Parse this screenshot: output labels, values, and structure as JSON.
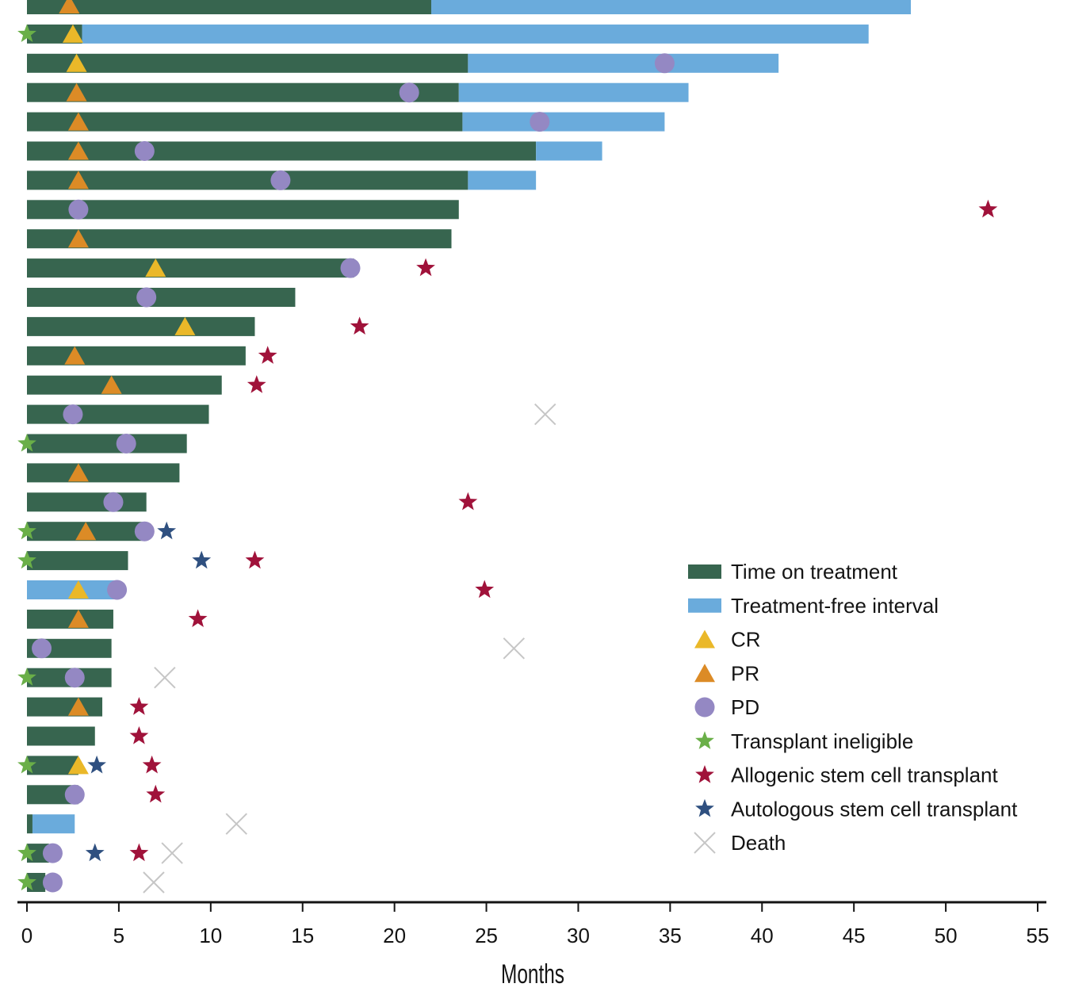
{
  "chart_data": {
    "type": "bar",
    "orientation": "horizontal",
    "xlabel": "Months",
    "xlim": [
      0,
      55
    ],
    "xticks": [
      0,
      5,
      10,
      15,
      20,
      25,
      30,
      35,
      40,
      45,
      50,
      55
    ],
    "grid": false,
    "legend_position": "bottom-right",
    "legend": [
      {
        "key": "treatment",
        "label": "Time on treatment",
        "marker": "bar",
        "color": "#37654f"
      },
      {
        "key": "tfi",
        "label": "Treatment-free interval",
        "marker": "bar",
        "color": "#6aabdc"
      },
      {
        "key": "cr",
        "label": "CR",
        "marker": "triangle",
        "color": "#eab829"
      },
      {
        "key": "pr",
        "label": "PR",
        "marker": "triangle",
        "color": "#dc8b26"
      },
      {
        "key": "pd",
        "label": "PD",
        "marker": "circle",
        "color": "#9488c3"
      },
      {
        "key": "ineligible",
        "label": "Transplant ineligible",
        "marker": "star",
        "color": "#6aaf48"
      },
      {
        "key": "allo",
        "label": "Allogenic stem cell transplant",
        "marker": "star",
        "color": "#a0123a"
      },
      {
        "key": "auto",
        "label": "Autologous stem cell transplant",
        "marker": "star",
        "color": "#2f5080"
      },
      {
        "key": "death",
        "label": "Death",
        "marker": "cross",
        "color": "#c6c6c6"
      }
    ],
    "patients": [
      {
        "treatment": 22.0,
        "tfi": 48.1,
        "pr": 2.3
      },
      {
        "treatment": 3.0,
        "tfi": 45.8,
        "cr": 2.5,
        "ineligible": 0
      },
      {
        "treatment": 24.0,
        "tfi": 40.9,
        "cr": 2.7,
        "pd": 34.7
      },
      {
        "treatment": 23.5,
        "tfi": 36.0,
        "pr": 2.7,
        "pd": 20.8
      },
      {
        "treatment": 23.7,
        "tfi": 34.7,
        "pr": 2.8,
        "pd": 27.9
      },
      {
        "treatment": 27.7,
        "tfi": 31.3,
        "pr": 2.8,
        "pd": 6.4
      },
      {
        "treatment": 24.0,
        "tfi": 27.7,
        "pr": 2.8,
        "pd": 13.8
      },
      {
        "treatment": 23.5,
        "pd": 2.8,
        "allo": 52.3
      },
      {
        "treatment": 23.1,
        "pr": 2.8
      },
      {
        "treatment": 17.8,
        "cr": 7.0,
        "pd": 17.6,
        "allo": 21.7
      },
      {
        "treatment": 14.6,
        "pd": 6.5
      },
      {
        "treatment": 12.4,
        "cr": 8.6,
        "allo": 18.1
      },
      {
        "treatment": 11.9,
        "pr": 2.6,
        "allo": 13.1
      },
      {
        "treatment": 10.6,
        "pr": 4.6,
        "allo": 12.5
      },
      {
        "treatment": 9.9,
        "pd": 2.5,
        "death": 28.2
      },
      {
        "treatment": 8.7,
        "pd": 5.4,
        "ineligible": 0
      },
      {
        "treatment": 8.3,
        "pr": 2.8
      },
      {
        "treatment": 6.5,
        "pd": 4.7,
        "allo": 24.0
      },
      {
        "treatment": 6.3,
        "pr": 3.2,
        "pd": 6.4,
        "auto": 7.6,
        "ineligible": 0
      },
      {
        "treatment": 5.5,
        "auto": 9.5,
        "allo": 12.4,
        "ineligible": 0
      },
      {
        "treatment": 0,
        "tfi": 5.0,
        "cr": 2.8,
        "pd": 4.9,
        "allo": 24.9
      },
      {
        "treatment": 4.7,
        "pr": 2.8,
        "allo": 9.3
      },
      {
        "treatment": 4.6,
        "pd": 0.8,
        "death": 26.5
      },
      {
        "treatment": 4.6,
        "pd": 2.6,
        "death": 7.5,
        "ineligible": 0
      },
      {
        "treatment": 4.1,
        "pr": 2.8,
        "allo": 6.1
      },
      {
        "treatment": 3.7,
        "allo": 6.1
      },
      {
        "treatment": 2.8,
        "cr": 2.8,
        "auto": 3.8,
        "allo": 6.8,
        "ineligible": 0
      },
      {
        "treatment": 2.8,
        "pd": 2.6,
        "allo": 7.0
      },
      {
        "treatment": 0.3,
        "tfi": 2.6,
        "death": 11.4
      },
      {
        "treatment": 1.2,
        "pd": 1.4,
        "auto": 3.7,
        "allo": 6.1,
        "death": 7.9,
        "ineligible": 0
      },
      {
        "treatment": 1.0,
        "pd": 1.4,
        "death": 6.9,
        "ineligible": 0
      }
    ]
  }
}
